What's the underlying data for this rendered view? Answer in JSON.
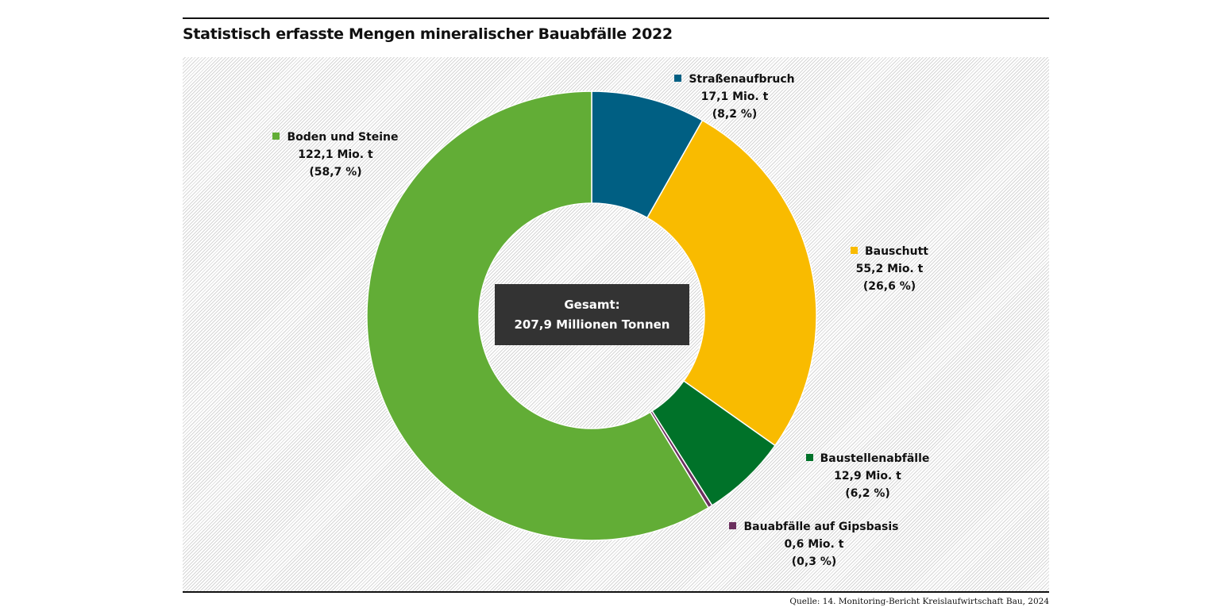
{
  "title": "Statistisch erfasste Mengen mineralischer Bauabfälle 2022",
  "center_label": {
    "line1": "Gesamt:",
    "line2": "207,9 Millionen Tonnen"
  },
  "source": "Quelle: 14. Monitoring-Bericht Kreislaufwirtschaft Bau, 2024",
  "chart_data": {
    "type": "pie",
    "variant": "donut",
    "title": "Statistisch erfasste Mengen mineralischer Bauabfälle 2022",
    "unit": "Mio. t",
    "total": 207.9,
    "slices": [
      {
        "name": "Straßenaufbruch",
        "value": 17.1,
        "value_label": "17,1 Mio. t",
        "percent": 8.2,
        "percent_label": "(8,2 %)",
        "color": "#005f83"
      },
      {
        "name": "Bauschutt",
        "value": 55.2,
        "value_label": "55,2 Mio. t",
        "percent": 26.6,
        "percent_label": "(26,6 %)",
        "color": "#f9bb00"
      },
      {
        "name": "Baustellenabfälle",
        "value": 12.9,
        "value_label": "12,9 Mio. t",
        "percent": 6.2,
        "percent_label": "(6,2 %)",
        "color": "#007229"
      },
      {
        "name": "Bauabfälle auf Gipsbasis",
        "value": 0.6,
        "value_label": "0,6 Mio. t",
        "percent": 0.3,
        "percent_label": "(0,3 %)",
        "color": "#6b2f5e"
      },
      {
        "name": "Boden und Steine",
        "value": 122.1,
        "value_label": "122,1 Mio. t",
        "percent": 58.7,
        "percent_label": "(58,7 %)",
        "color": "#62ad36"
      }
    ]
  }
}
